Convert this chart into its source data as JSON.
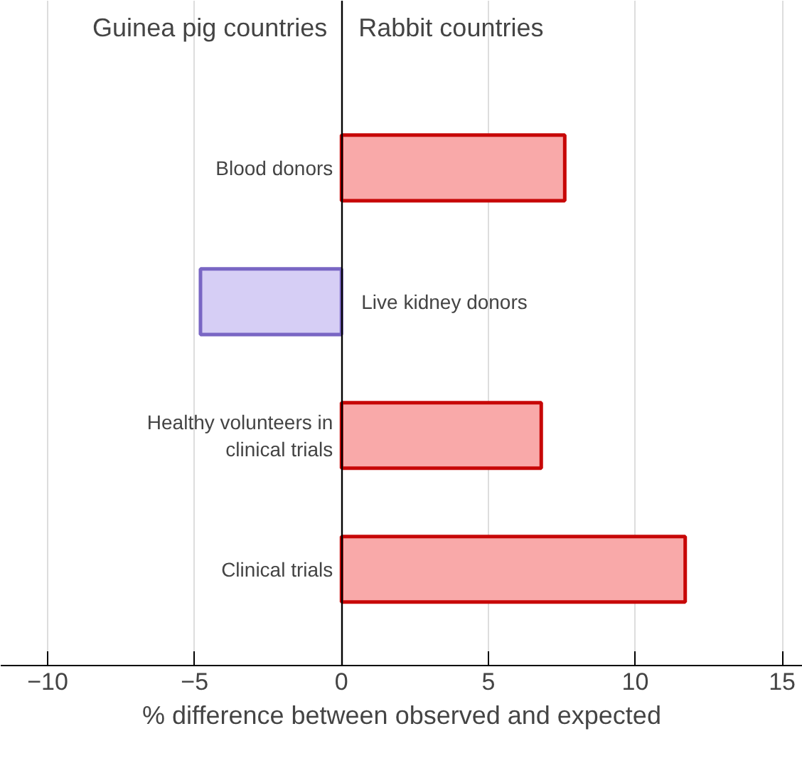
{
  "chart_data": {
    "type": "bar",
    "orientation": "horizontal",
    "categories": [
      "Blood donors",
      "Live kidney donors",
      "Healthy volunteers in\nclinical trials",
      "Clinical trials"
    ],
    "values": [
      7.6,
      -4.8,
      6.8,
      11.7
    ],
    "colors": [
      "#f9a9a9",
      "#d6cef5",
      "#f9a9a9",
      "#f9a9a9"
    ],
    "xlim": [
      -11.6,
      15.7
    ],
    "xticks": [
      -10,
      -5,
      0,
      5,
      10,
      15
    ],
    "xlabel": "% difference between observed and expected",
    "annotations": [
      "Guinea pig countries",
      "Rabbit countries"
    ],
    "grid": "x"
  }
}
